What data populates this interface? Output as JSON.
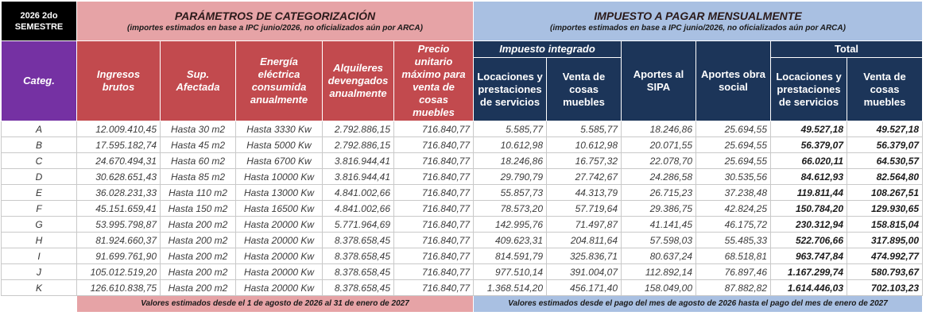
{
  "corner": {
    "line1": "2026 2do",
    "line2": "SEMESTRE"
  },
  "params": {
    "title": "PARÁMETROS DE CATEGORIZACIÓN",
    "subtitle": "(importes estimados en base a IPC junio/2026, no oficializados aún por ARCA)"
  },
  "tax": {
    "title": "IMPUESTO A PAGAR MENSUALMENTE",
    "subtitle": "(importes estimados en base a IPC junio/2026, no oficializados aún por ARCA)"
  },
  "headers": {
    "categ": "Categ.",
    "ingresos": "Ingresos brutos",
    "sup": "Sup. Afectada",
    "energia": "Energía eléctrica consumida anualmente",
    "alquileres": "Alquileres devengados anualmente",
    "precio": "Precio unitario máximo para venta de cosas muebles",
    "impuesto_integrado": "Impuesto integrado",
    "locaciones": "Locaciones y prestaciones de servicios",
    "venta": "Venta de cosas muebles",
    "sipa": "Aportes al SIPA",
    "obra_social": "Aportes obra social",
    "total": "Total",
    "total_locaciones": "Locaciones y prestaciones de servicios",
    "total_venta": "Venta de cosas muebles"
  },
  "rows": [
    [
      "A",
      "12.009.410,45",
      "Hasta 30 m2",
      "Hasta 3330 Kw",
      "2.792.886,15",
      "716.840,77",
      "5.585,77",
      "5.585,77",
      "18.246,86",
      "25.694,55",
      "49.527,18",
      "49.527,18"
    ],
    [
      "B",
      "17.595.182,74",
      "Hasta 45 m2",
      "Hasta 5000 Kw",
      "2.792.886,15",
      "716.840,77",
      "10.612,98",
      "10.612,98",
      "20.071,55",
      "25.694,55",
      "56.379,07",
      "56.379,07"
    ],
    [
      "C",
      "24.670.494,31",
      "Hasta 60 m2",
      "Hasta 6700 Kw",
      "3.816.944,41",
      "716.840,77",
      "18.246,86",
      "16.757,32",
      "22.078,70",
      "25.694,55",
      "66.020,11",
      "64.530,57"
    ],
    [
      "D",
      "30.628.651,43",
      "Hasta 85 m2",
      "Hasta 10000 Kw",
      "3.816.944,41",
      "716.840,77",
      "29.790,79",
      "27.742,67",
      "24.286,58",
      "30.535,56",
      "84.612,93",
      "82.564,80"
    ],
    [
      "E",
      "36.028.231,33",
      "Hasta 110 m2",
      "Hasta 13000 Kw",
      "4.841.002,66",
      "716.840,77",
      "55.857,73",
      "44.313,79",
      "26.715,23",
      "37.238,48",
      "119.811,44",
      "108.267,51"
    ],
    [
      "F",
      "45.151.659,41",
      "Hasta 150 m2",
      "Hasta 16500 Kw",
      "4.841.002,66",
      "716.840,77",
      "78.573,20",
      "57.719,64",
      "29.386,75",
      "42.824,25",
      "150.784,20",
      "129.930,65"
    ],
    [
      "G",
      "53.995.798,87",
      "Hasta 200 m2",
      "Hasta 20000 Kw",
      "5.771.964,69",
      "716.840,77",
      "142.995,76",
      "71.497,87",
      "41.141,45",
      "46.175,72",
      "230.312,94",
      "158.815,04"
    ],
    [
      "H",
      "81.924.660,37",
      "Hasta 200 m2",
      "Hasta 20000 Kw",
      "8.378.658,45",
      "716.840,77",
      "409.623,31",
      "204.811,64",
      "57.598,03",
      "55.485,33",
      "522.706,66",
      "317.895,00"
    ],
    [
      "I",
      "91.699.761,90",
      "Hasta 200 m2",
      "Hasta 20000 Kw",
      "8.378.658,45",
      "716.840,77",
      "814.591,79",
      "325.836,71",
      "80.637,24",
      "68.518,81",
      "963.747,84",
      "474.992,77"
    ],
    [
      "J",
      "105.012.519,20",
      "Hasta 200 m2",
      "Hasta 20000 Kw",
      "8.378.658,45",
      "716.840,77",
      "977.510,14",
      "391.004,07",
      "112.892,14",
      "76.897,46",
      "1.167.299,74",
      "580.793,67"
    ],
    [
      "K",
      "126.610.838,75",
      "Hasta 200 m2",
      "Hasta 20000 Kw",
      "8.378.658,45",
      "716.840,77",
      "1.368.514,20",
      "456.171,40",
      "158.049,00",
      "87.882,82",
      "1.614.446,03",
      "702.103,23"
    ]
  ],
  "footer": {
    "params_note": "Valores estimados desde el 1 de agosto de 2026 al 31 de enero de 2027",
    "tax_note": "Valores estimados desde el pago del mes de agosto de 2026 hasta el pago del mes de enero de 2027"
  },
  "colors": {
    "corner_bg": "#000000",
    "params_title_bg": "#e6a3a6",
    "params_head_bg": "#c24a4e",
    "categ_head_bg": "#7531a3",
    "tax_title_bg": "#a9c0e2",
    "tax_head_bg": "#1c3559"
  }
}
